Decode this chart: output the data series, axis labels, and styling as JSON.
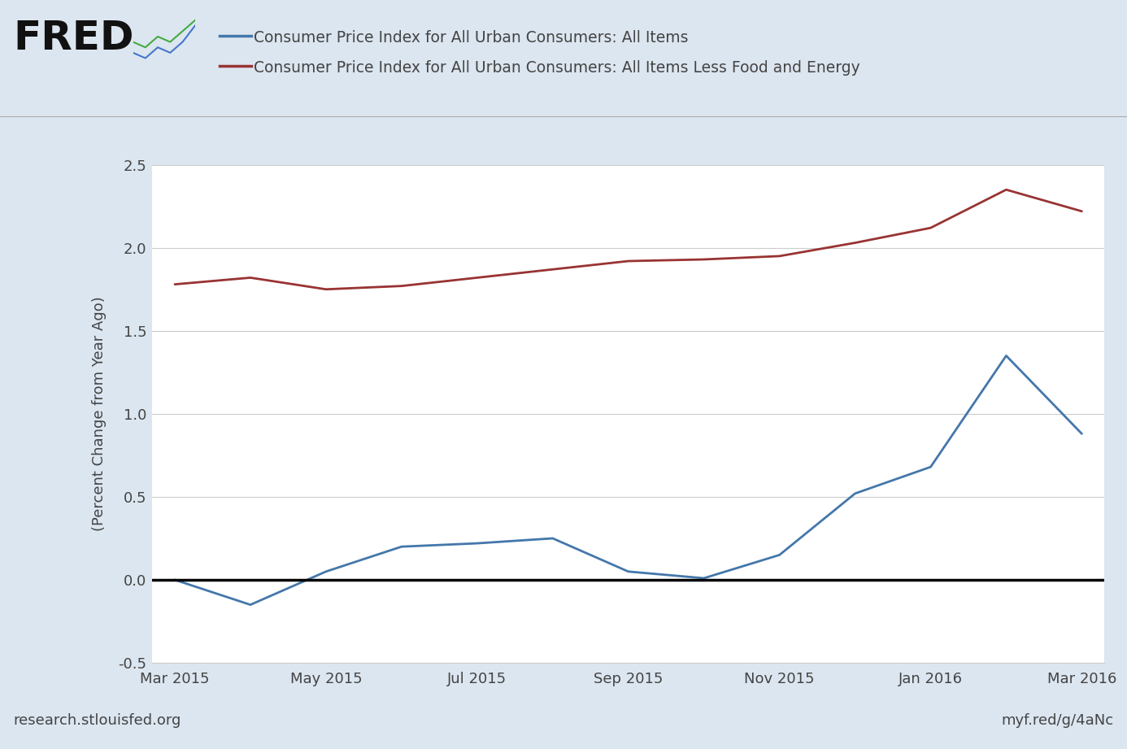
{
  "blue_label": "Consumer Price Index for All Urban Consumers: All Items",
  "red_label": "Consumer Price Index for All Urban Consumers: All Items Less Food and Energy",
  "x_labels": [
    "Mar 2015",
    "May 2015",
    "Jul 2015",
    "Sep 2015",
    "Nov 2015",
    "Jan 2016",
    "Mar 2016"
  ],
  "x_tick_positions": [
    0,
    2,
    4,
    6,
    8,
    10,
    12
  ],
  "blue_x": [
    0,
    1,
    2,
    3,
    4,
    5,
    6,
    7,
    8,
    9,
    10,
    11,
    12
  ],
  "blue_y": [
    0.0,
    -0.15,
    0.05,
    0.2,
    0.22,
    0.25,
    0.05,
    0.01,
    0.15,
    0.52,
    0.68,
    1.35,
    0.88
  ],
  "red_x": [
    0,
    1,
    2,
    3,
    4,
    5,
    6,
    7,
    8,
    9,
    10,
    11,
    12
  ],
  "red_y": [
    1.78,
    1.82,
    1.75,
    1.77,
    1.82,
    1.87,
    1.92,
    1.93,
    1.95,
    2.03,
    2.12,
    2.35,
    2.22
  ],
  "ylim": [
    -0.5,
    2.5
  ],
  "yticks": [
    -0.5,
    0.0,
    0.5,
    1.0,
    1.5,
    2.0,
    2.5
  ],
  "ylabel": "(Percent Change from Year Ago)",
  "background_color": "#dce6f0",
  "plot_bg_color": "#ffffff",
  "blue_color": "#4477aa",
  "red_color": "#993333",
  "zero_line_color": "#000000",
  "grid_color": "#cccccc",
  "footer_left": "research.stlouisfed.org",
  "footer_right": "myf.red/g/4aNc",
  "text_color": "#444444",
  "fred_color": "#111111",
  "sep_color": "#aaaaaa"
}
